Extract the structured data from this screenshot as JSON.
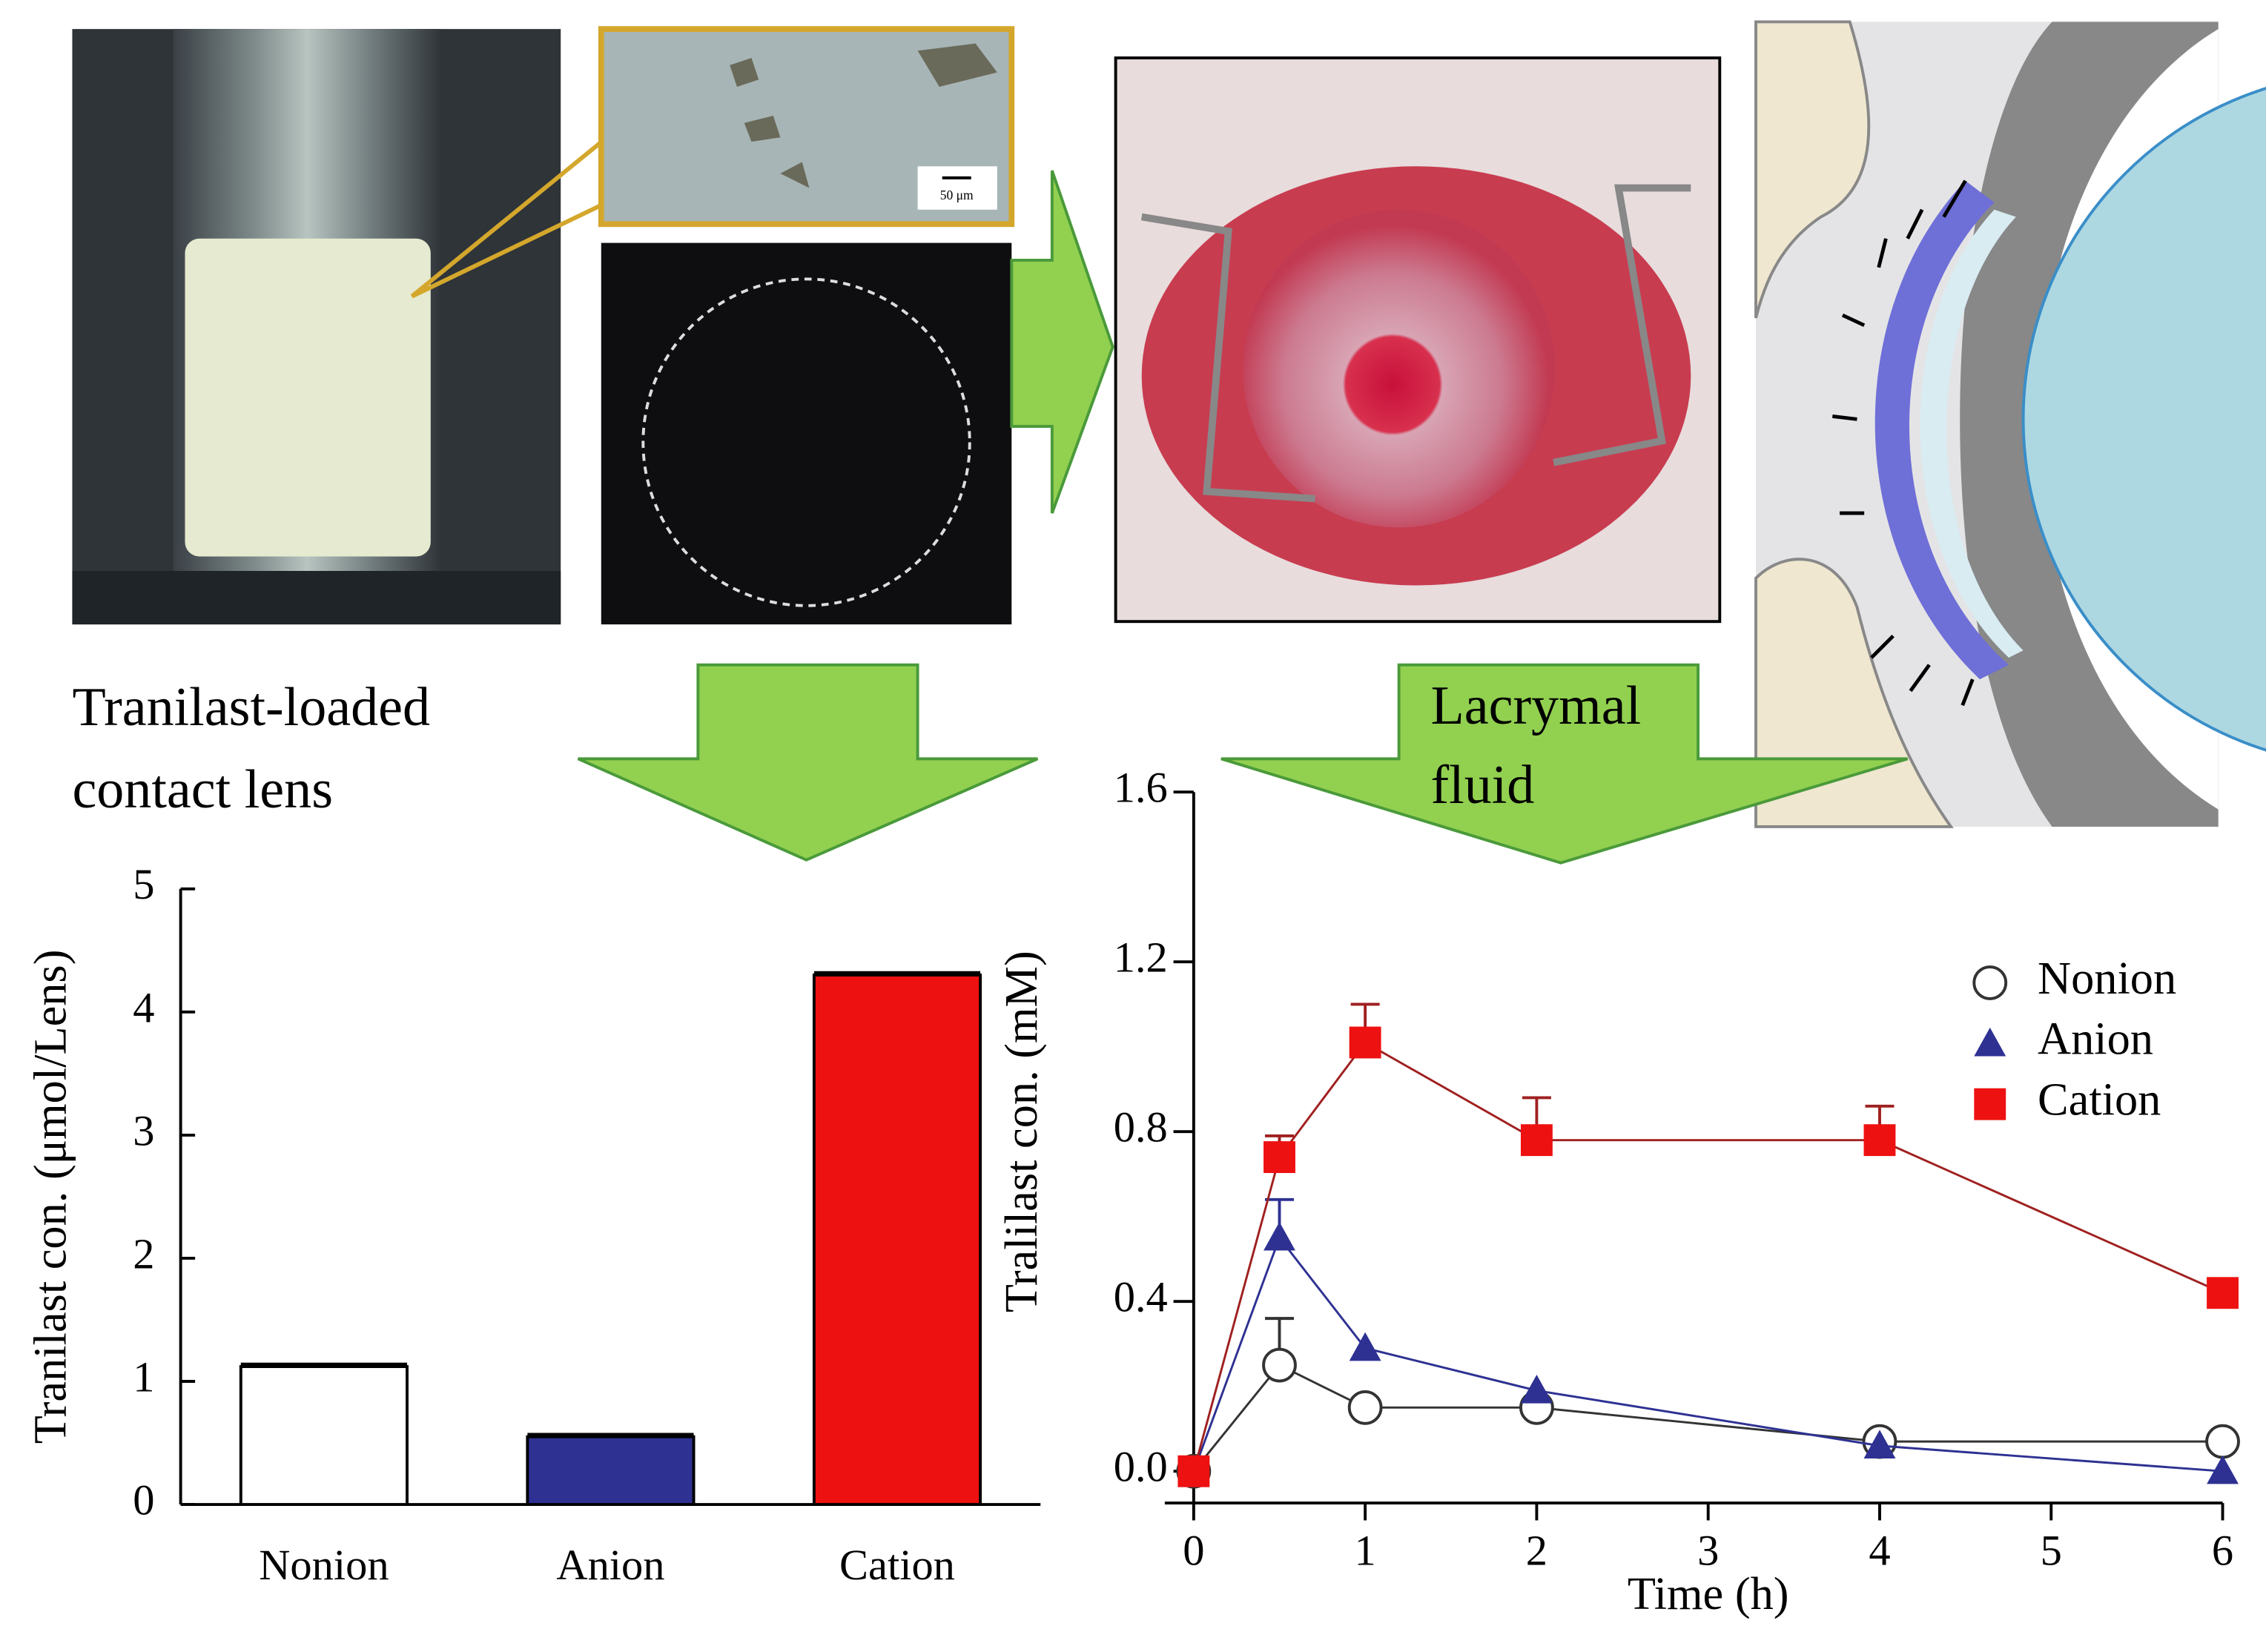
{
  "annotations": {
    "lens_label": [
      "Tranilast-loaded",
      "contact lens"
    ],
    "fluid_label": [
      "Lacrymal",
      "fluid"
    ],
    "scale_bar": "50 μm"
  },
  "chart_data": [
    {
      "type": "bar",
      "ylabel": "Tranilast con. (μmol/Lens)",
      "categories": [
        "Nonion",
        "Anion",
        "Cation"
      ],
      "values": [
        1.12,
        0.55,
        4.3
      ],
      "errors": [
        0.02,
        0.02,
        0.02
      ],
      "colors": [
        "#ffffff",
        "#2e3192",
        "#ee1111"
      ],
      "ylim": [
        0,
        5
      ],
      "yticks": [
        0,
        1,
        2,
        3,
        4,
        5
      ]
    },
    {
      "type": "line",
      "xlabel": "Time (h)",
      "ylabel": "Tralilast con. (mM)",
      "x": [
        0,
        0.5,
        1,
        2,
        4,
        6
      ],
      "xlim": [
        0,
        6
      ],
      "xticks": [
        0,
        1,
        2,
        3,
        4,
        5,
        6
      ],
      "ylim": [
        0,
        1.6
      ],
      "yticks": [
        {
          "value": 0,
          "label": "0.0"
        },
        {
          "value": 0.4,
          "label": "0.4"
        },
        {
          "value": 0.8,
          "label": "0.8"
        },
        {
          "value": 1.2,
          "label": "1.2"
        },
        {
          "value": 1.6,
          "label": "1.6"
        }
      ],
      "legend": "upper right",
      "series": [
        {
          "name": "Nonion",
          "marker": "circle",
          "color": "#ffffff",
          "line_color": "#333333",
          "values": [
            0,
            0.25,
            0.15,
            0.15,
            0.07,
            0.07
          ],
          "errors": [
            0,
            0.11,
            0,
            0,
            0,
            0
          ]
        },
        {
          "name": "Anion",
          "marker": "triangle",
          "color": "#2e3192",
          "line_color": "#2e3192",
          "values": [
            0,
            0.55,
            0.29,
            0.19,
            0.06,
            0
          ],
          "errors": [
            0,
            0.09,
            0,
            0,
            0,
            0
          ]
        },
        {
          "name": "Cation",
          "marker": "square",
          "color": "#ee1111",
          "line_color": "#a02020",
          "values": [
            0,
            0.74,
            1.01,
            0.78,
            0.78,
            0.42
          ],
          "errors": [
            0,
            0.05,
            0.09,
            0.1,
            0.08,
            0
          ]
        }
      ]
    }
  ]
}
